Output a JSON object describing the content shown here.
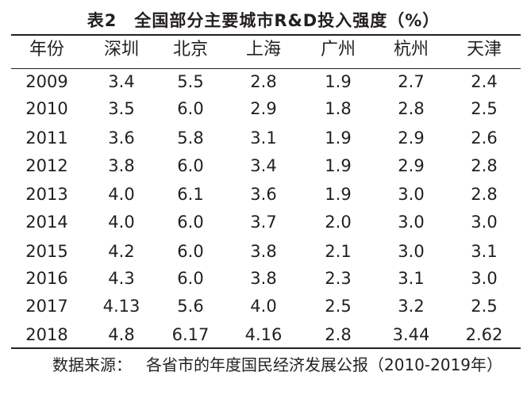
{
  "caption": {
    "number": "表2",
    "text": "全国部分主要城市R&D投入强度（%）"
  },
  "table": {
    "headers": [
      "年份",
      "深圳",
      "北京",
      "上海",
      "广州",
      "杭州",
      "天津"
    ],
    "rows": [
      [
        "2009",
        "3.4",
        "5.5",
        "2.8",
        "1.9",
        "2.7",
        "2.4"
      ],
      [
        "2010",
        "3.5",
        "6.0",
        "2.9",
        "1.8",
        "2.8",
        "2.5"
      ],
      [
        "2011",
        "3.6",
        "5.8",
        "3.1",
        "1.9",
        "2.9",
        "2.6"
      ],
      [
        "2012",
        "3.8",
        "6.0",
        "3.4",
        "1.9",
        "2.9",
        "2.8"
      ],
      [
        "2013",
        "4.0",
        "6.1",
        "3.6",
        "1.9",
        "3.0",
        "2.8"
      ],
      [
        "2014",
        "4.0",
        "6.0",
        "3.7",
        "2.0",
        "3.0",
        "3.0"
      ],
      [
        "2015",
        "4.2",
        "6.0",
        "3.8",
        "2.1",
        "3.0",
        "3.1"
      ],
      [
        "2016",
        "4.3",
        "6.0",
        "3.8",
        "2.3",
        "3.1",
        "3.0"
      ],
      [
        "2017",
        "4.13",
        "5.6",
        "4.0",
        "2.5",
        "3.2",
        "2.5"
      ],
      [
        "2018",
        "4.8",
        "6.17",
        "4.16",
        "2.8",
        "3.44",
        "2.62"
      ]
    ]
  },
  "source": {
    "label": "数据来源：",
    "text": "各省市的年度国民经济发展公报（2010-2019年）"
  }
}
